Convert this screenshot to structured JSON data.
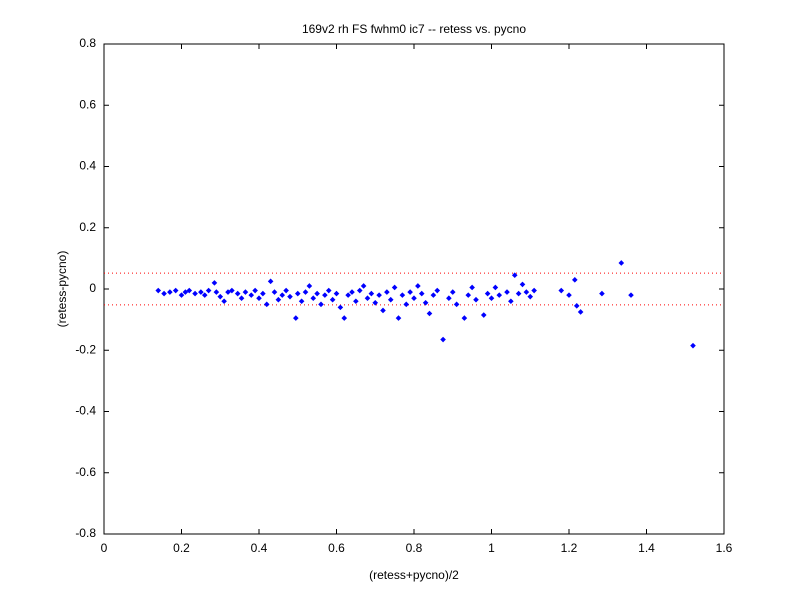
{
  "chart_data": {
    "type": "scatter",
    "title": "169v2 rh FS fwhm0 ic7 -- retess vs. pycno",
    "x_label": "(retess+pycno)/2",
    "y_label": "(retess-pycno)",
    "xlim": [
      0,
      1.6
    ],
    "xticks": [
      0,
      0.2,
      0.4,
      0.6,
      0.8,
      1,
      1.2,
      1.4,
      1.6
    ],
    "ylim": [
      -0.8,
      0.8
    ],
    "yticks": [
      -0.8,
      -0.6,
      -0.4,
      -0.2,
      0,
      0.2,
      0.4,
      0.6,
      0.8
    ],
    "grid": false,
    "hlines": [
      0.052,
      -0.052
    ],
    "hline_color": "#ff0000",
    "series": [
      {
        "color": "#0000ff",
        "x": [
          0.14,
          0.155,
          0.17,
          0.185,
          0.2,
          0.21,
          0.22,
          0.235,
          0.25,
          0.26,
          0.27,
          0.285,
          0.29,
          0.3,
          0.31,
          0.32,
          0.33,
          0.345,
          0.355,
          0.365,
          0.38,
          0.39,
          0.4,
          0.41,
          0.42,
          0.43,
          0.44,
          0.45,
          0.46,
          0.47,
          0.48,
          0.495,
          0.5,
          0.51,
          0.52,
          0.53,
          0.54,
          0.55,
          0.56,
          0.57,
          0.58,
          0.59,
          0.6,
          0.61,
          0.62,
          0.63,
          0.64,
          0.65,
          0.66,
          0.67,
          0.68,
          0.69,
          0.7,
          0.71,
          0.72,
          0.73,
          0.74,
          0.75,
          0.76,
          0.77,
          0.78,
          0.79,
          0.8,
          0.81,
          0.82,
          0.83,
          0.84,
          0.85,
          0.86,
          0.875,
          0.89,
          0.9,
          0.91,
          0.93,
          0.94,
          0.95,
          0.96,
          0.98,
          0.99,
          1.0,
          1.01,
          1.02,
          1.04,
          1.05,
          1.06,
          1.07,
          1.08,
          1.09,
          1.1,
          1.11,
          1.18,
          1.2,
          1.215,
          1.22,
          1.23,
          1.285,
          1.335,
          1.36,
          1.52
        ],
        "values": [
          -0.005,
          -0.015,
          -0.01,
          -0.005,
          -0.02,
          -0.01,
          -0.005,
          -0.015,
          -0.01,
          -0.02,
          -0.005,
          0.02,
          -0.01,
          -0.025,
          -0.04,
          -0.01,
          -0.005,
          -0.015,
          -0.03,
          -0.01,
          -0.02,
          -0.005,
          -0.03,
          -0.015,
          -0.05,
          0.025,
          -0.01,
          -0.035,
          -0.02,
          -0.005,
          -0.025,
          -0.095,
          -0.015,
          -0.04,
          -0.01,
          0.01,
          -0.03,
          -0.015,
          -0.05,
          -0.02,
          -0.005,
          -0.035,
          -0.015,
          -0.06,
          -0.095,
          -0.02,
          -0.01,
          -0.04,
          -0.005,
          0.01,
          -0.03,
          -0.015,
          -0.045,
          -0.02,
          -0.07,
          -0.01,
          -0.035,
          0.005,
          -0.095,
          -0.02,
          -0.05,
          -0.01,
          -0.03,
          0.01,
          -0.015,
          -0.045,
          -0.08,
          -0.02,
          -0.005,
          -0.165,
          -0.03,
          -0.01,
          -0.05,
          -0.095,
          -0.02,
          0.005,
          -0.035,
          -0.085,
          -0.015,
          -0.03,
          0.005,
          -0.02,
          -0.01,
          -0.04,
          0.045,
          -0.015,
          0.015,
          -0.01,
          -0.025,
          -0.005,
          -0.005,
          -0.02,
          0.03,
          -0.055,
          -0.075,
          -0.015,
          0.085,
          -0.02,
          -0.185
        ]
      }
    ]
  }
}
